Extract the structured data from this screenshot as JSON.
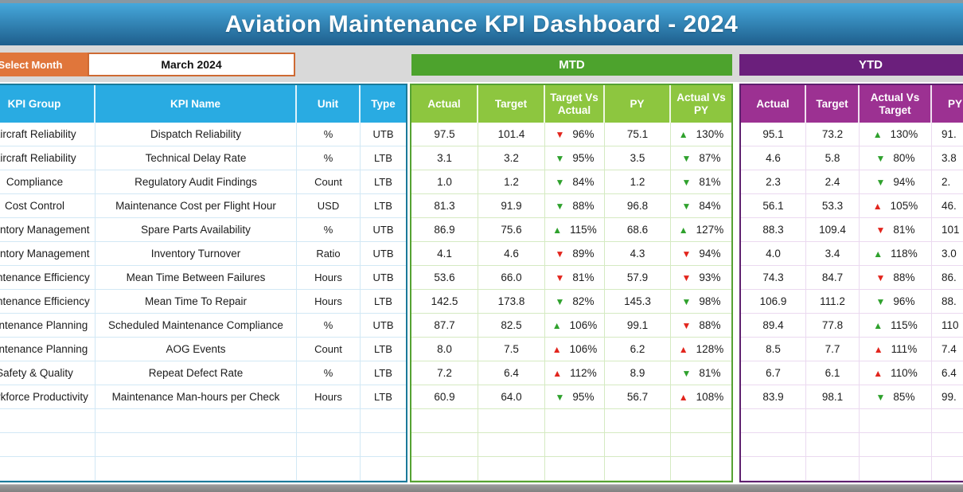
{
  "title": "Aviation Maintenance KPI Dashboard - 2024",
  "select_month": {
    "label": "Select Month",
    "value": "March 2024"
  },
  "left_table": {
    "headers": [
      "KPI Group",
      "KPI Name",
      "Unit",
      "Type"
    ]
  },
  "mtd": {
    "label": "MTD",
    "headers": [
      "Actual",
      "Target",
      "Target Vs Actual",
      "PY",
      "Actual Vs PY"
    ]
  },
  "ytd": {
    "label": "YTD",
    "headers": [
      "Actual",
      "Target",
      "Actual Vs Target",
      "PY"
    ]
  },
  "empty_row_count": 3,
  "rows": [
    {
      "group": "Aircraft Reliability",
      "name": "Dispatch Reliability",
      "unit": "%",
      "type": "UTB",
      "mtd": {
        "actual": "97.5",
        "target": "101.4",
        "target_vs_actual": {
          "dir": "down",
          "color": "red",
          "pct": "96%"
        },
        "py": "75.1",
        "actual_vs_py": {
          "dir": "up",
          "color": "green",
          "pct": "130%"
        }
      },
      "ytd": {
        "actual": "95.1",
        "target": "73.2",
        "actual_vs_target": {
          "dir": "up",
          "color": "green",
          "pct": "130%"
        },
        "py": "91."
      }
    },
    {
      "group": "Aircraft Reliability",
      "name": "Technical Delay Rate",
      "unit": "%",
      "type": "LTB",
      "mtd": {
        "actual": "3.1",
        "target": "3.2",
        "target_vs_actual": {
          "dir": "down",
          "color": "green",
          "pct": "95%"
        },
        "py": "3.5",
        "actual_vs_py": {
          "dir": "down",
          "color": "green",
          "pct": "87%"
        }
      },
      "ytd": {
        "actual": "4.6",
        "target": "5.8",
        "actual_vs_target": {
          "dir": "down",
          "color": "green",
          "pct": "80%"
        },
        "py": "3.8"
      }
    },
    {
      "group": "Compliance",
      "name": "Regulatory Audit Findings",
      "unit": "Count",
      "type": "LTB",
      "mtd": {
        "actual": "1.0",
        "target": "1.2",
        "target_vs_actual": {
          "dir": "down",
          "color": "green",
          "pct": "84%"
        },
        "py": "1.2",
        "actual_vs_py": {
          "dir": "down",
          "color": "green",
          "pct": "81%"
        }
      },
      "ytd": {
        "actual": "2.3",
        "target": "2.4",
        "actual_vs_target": {
          "dir": "down",
          "color": "green",
          "pct": "94%"
        },
        "py": "2."
      }
    },
    {
      "group": "Cost Control",
      "name": "Maintenance Cost per Flight Hour",
      "unit": "USD",
      "type": "LTB",
      "mtd": {
        "actual": "81.3",
        "target": "91.9",
        "target_vs_actual": {
          "dir": "down",
          "color": "green",
          "pct": "88%"
        },
        "py": "96.8",
        "actual_vs_py": {
          "dir": "down",
          "color": "green",
          "pct": "84%"
        }
      },
      "ytd": {
        "actual": "56.1",
        "target": "53.3",
        "actual_vs_target": {
          "dir": "up",
          "color": "red",
          "pct": "105%"
        },
        "py": "46."
      }
    },
    {
      "group": "Inventory Management",
      "name": "Spare Parts Availability",
      "unit": "%",
      "type": "UTB",
      "mtd": {
        "actual": "86.9",
        "target": "75.6",
        "target_vs_actual": {
          "dir": "up",
          "color": "green",
          "pct": "115%"
        },
        "py": "68.6",
        "actual_vs_py": {
          "dir": "up",
          "color": "green",
          "pct": "127%"
        }
      },
      "ytd": {
        "actual": "88.3",
        "target": "109.4",
        "actual_vs_target": {
          "dir": "down",
          "color": "red",
          "pct": "81%"
        },
        "py": "101"
      }
    },
    {
      "group": "Inventory Management",
      "name": "Inventory Turnover",
      "unit": "Ratio",
      "type": "UTB",
      "mtd": {
        "actual": "4.1",
        "target": "4.6",
        "target_vs_actual": {
          "dir": "down",
          "color": "red",
          "pct": "89%"
        },
        "py": "4.3",
        "actual_vs_py": {
          "dir": "down",
          "color": "red",
          "pct": "94%"
        }
      },
      "ytd": {
        "actual": "4.0",
        "target": "3.4",
        "actual_vs_target": {
          "dir": "up",
          "color": "green",
          "pct": "118%"
        },
        "py": "3.0"
      }
    },
    {
      "group": "Maintenance Efficiency",
      "name": "Mean Time Between Failures",
      "unit": "Hours",
      "type": "UTB",
      "mtd": {
        "actual": "53.6",
        "target": "66.0",
        "target_vs_actual": {
          "dir": "down",
          "color": "red",
          "pct": "81%"
        },
        "py": "57.9",
        "actual_vs_py": {
          "dir": "down",
          "color": "red",
          "pct": "93%"
        }
      },
      "ytd": {
        "actual": "74.3",
        "target": "84.7",
        "actual_vs_target": {
          "dir": "down",
          "color": "red",
          "pct": "88%"
        },
        "py": "86."
      }
    },
    {
      "group": "Maintenance Efficiency",
      "name": "Mean Time To Repair",
      "unit": "Hours",
      "type": "LTB",
      "mtd": {
        "actual": "142.5",
        "target": "173.8",
        "target_vs_actual": {
          "dir": "down",
          "color": "green",
          "pct": "82%"
        },
        "py": "145.3",
        "actual_vs_py": {
          "dir": "down",
          "color": "green",
          "pct": "98%"
        }
      },
      "ytd": {
        "actual": "106.9",
        "target": "111.2",
        "actual_vs_target": {
          "dir": "down",
          "color": "green",
          "pct": "96%"
        },
        "py": "88."
      }
    },
    {
      "group": "Maintenance Planning",
      "name": "Scheduled Maintenance Compliance",
      "unit": "%",
      "type": "UTB",
      "mtd": {
        "actual": "87.7",
        "target": "82.5",
        "target_vs_actual": {
          "dir": "up",
          "color": "green",
          "pct": "106%"
        },
        "py": "99.1",
        "actual_vs_py": {
          "dir": "down",
          "color": "red",
          "pct": "88%"
        }
      },
      "ytd": {
        "actual": "89.4",
        "target": "77.8",
        "actual_vs_target": {
          "dir": "up",
          "color": "green",
          "pct": "115%"
        },
        "py": "110"
      }
    },
    {
      "group": "Maintenance Planning",
      "name": "AOG Events",
      "unit": "Count",
      "type": "LTB",
      "mtd": {
        "actual": "8.0",
        "target": "7.5",
        "target_vs_actual": {
          "dir": "up",
          "color": "red",
          "pct": "106%"
        },
        "py": "6.2",
        "actual_vs_py": {
          "dir": "up",
          "color": "red",
          "pct": "128%"
        }
      },
      "ytd": {
        "actual": "8.5",
        "target": "7.7",
        "actual_vs_target": {
          "dir": "up",
          "color": "red",
          "pct": "111%"
        },
        "py": "7.4"
      }
    },
    {
      "group": "Safety & Quality",
      "name": "Repeat Defect Rate",
      "unit": "%",
      "type": "LTB",
      "mtd": {
        "actual": "7.2",
        "target": "6.4",
        "target_vs_actual": {
          "dir": "up",
          "color": "red",
          "pct": "112%"
        },
        "py": "8.9",
        "actual_vs_py": {
          "dir": "down",
          "color": "green",
          "pct": "81%"
        }
      },
      "ytd": {
        "actual": "6.7",
        "target": "6.1",
        "actual_vs_target": {
          "dir": "up",
          "color": "red",
          "pct": "110%"
        },
        "py": "6.4"
      }
    },
    {
      "group": "Workforce Productivity",
      "name": "Maintenance Man-hours per Check",
      "unit": "Hours",
      "type": "LTB",
      "mtd": {
        "actual": "60.9",
        "target": "64.0",
        "target_vs_actual": {
          "dir": "down",
          "color": "green",
          "pct": "95%"
        },
        "py": "56.7",
        "actual_vs_py": {
          "dir": "up",
          "color": "red",
          "pct": "108%"
        }
      },
      "ytd": {
        "actual": "83.9",
        "target": "98.1",
        "actual_vs_target": {
          "dir": "down",
          "color": "green",
          "pct": "85%"
        },
        "py": "99."
      }
    }
  ],
  "colors": {
    "title_top": "#46A8DB",
    "title_bottom": "#1E5E8C",
    "top_strip": "#8798A3",
    "band": "#D9D9D9",
    "orange": "#E0763B",
    "orange_border": "#CE6A33",
    "header_blue": "#29ABE2",
    "mtd_green": "#4DA32D",
    "mtd_light": "#8DC63F",
    "mtd_border": "#55A233",
    "ytd_dark": "#6B1F7C",
    "ytd_mid": "#9C3192",
    "ytd_border": "#5E1F6E",
    "left_border": "#1B7A99",
    "line_blue": "#D2E8F5",
    "line_green": "#D5EAC2",
    "line_purple": "#EBD9F0",
    "up_green": "#2FA12D",
    "down_red": "#E2251D",
    "text": "#1A1A1A",
    "bottom_bar": "#8F8F8F"
  }
}
